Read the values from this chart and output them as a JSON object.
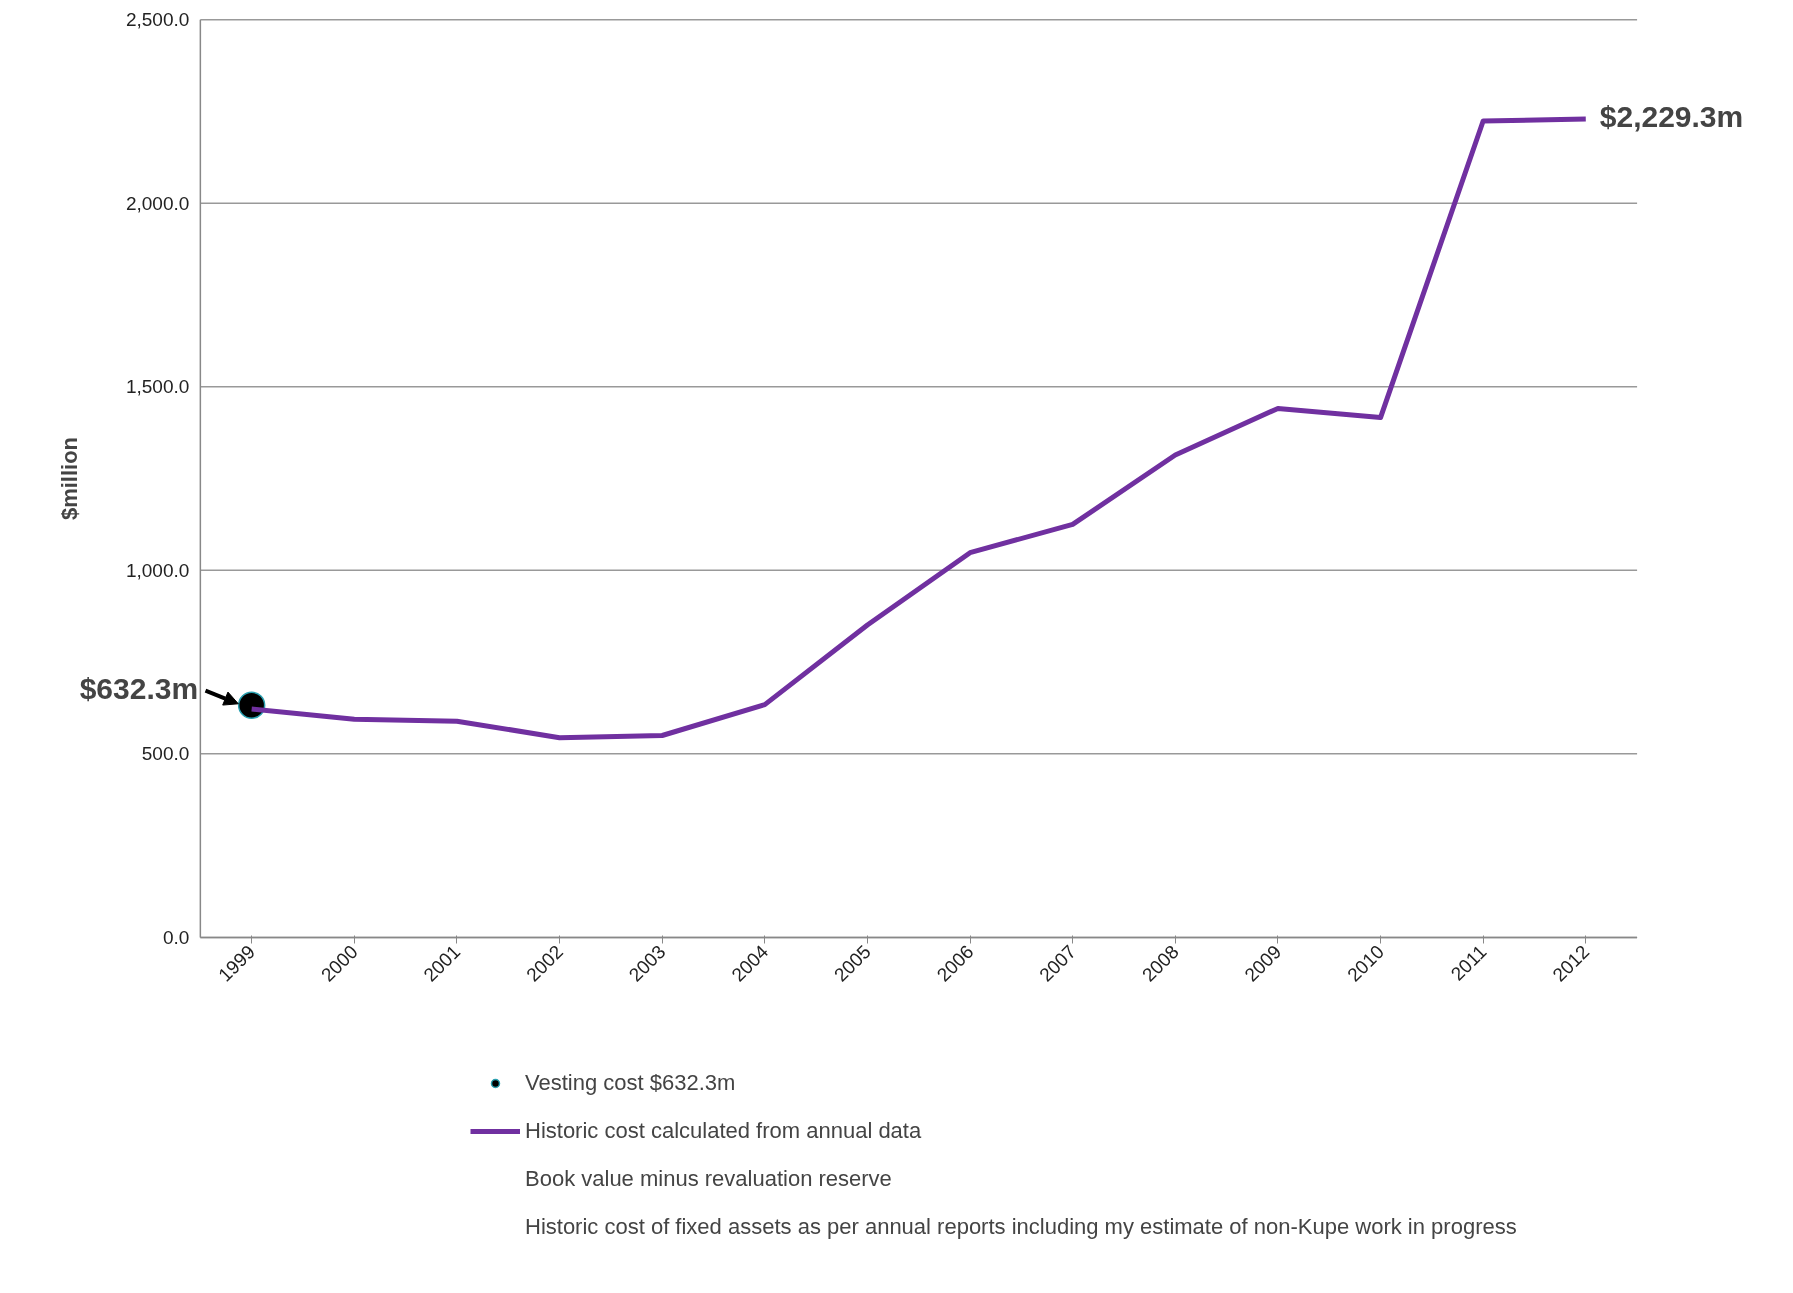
{
  "chart_data": {
    "type": "line",
    "categories": [
      "1999",
      "2000",
      "2001",
      "2002",
      "2003",
      "2004",
      "2005",
      "2006",
      "2007",
      "2008",
      "2009",
      "2010",
      "2011",
      "2012"
    ],
    "series": [
      {
        "name": "Vesting cost $632.3m",
        "type": "scatter",
        "marker": "circle",
        "color": "#000000",
        "values": [
          632.3,
          null,
          null,
          null,
          null,
          null,
          null,
          null,
          null,
          null,
          null,
          null,
          null,
          null
        ]
      },
      {
        "name": "Historic cost calculated from annual data",
        "color": "#7030a0",
        "values": [
          622,
          594,
          589,
          544,
          550,
          634,
          851,
          1048,
          1125,
          1314,
          1441,
          1416,
          2224,
          2229.3
        ]
      },
      {
        "name": "Book value minus revaluation reserve",
        "values": [
          null,
          null,
          null,
          null,
          null,
          null,
          null,
          null,
          null,
          null,
          null,
          null,
          null,
          null
        ]
      },
      {
        "name": "Historic cost of fixed assets as per annual reports including my estimate of non-Kupe work in progress",
        "values": [
          null,
          null,
          null,
          null,
          null,
          null,
          null,
          null,
          null,
          null,
          null,
          null,
          null,
          null
        ]
      }
    ],
    "ylabel": "$million",
    "ylim": [
      0,
      2500
    ],
    "yticks": [
      {
        "value": 0,
        "label": "0.0"
      },
      {
        "value": 500,
        "label": "500.0"
      },
      {
        "value": 1000,
        "label": "1,000.0"
      },
      {
        "value": 1500,
        "label": "1,500.0"
      },
      {
        "value": 2000,
        "label": "2,000.0"
      },
      {
        "value": 2500,
        "label": "2,500.0"
      }
    ],
    "annotations": [
      {
        "text": "$632.3m",
        "x": "1999",
        "y": 632.3
      },
      {
        "text": "$2,229.3m",
        "x": "2012",
        "y": 2229.3
      }
    ],
    "grid": "y",
    "legend": "bottom",
    "line_style": "solid"
  }
}
